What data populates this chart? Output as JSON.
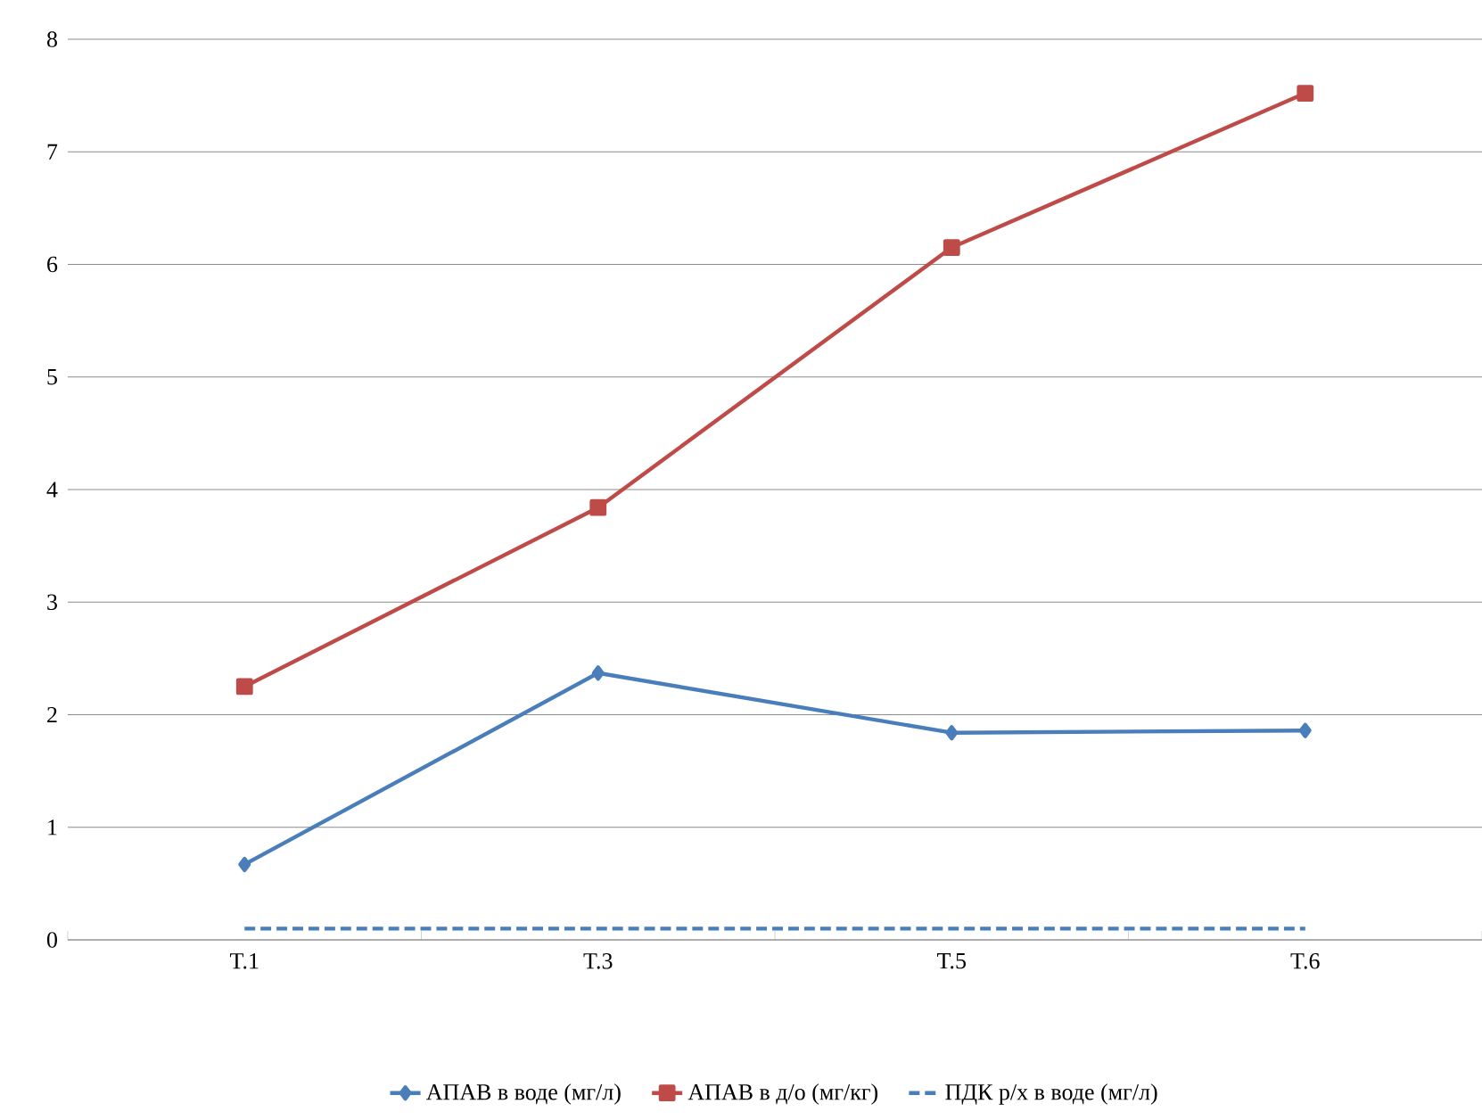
{
  "chart_data": {
    "type": "line",
    "categories": [
      "T.1",
      "T.3",
      "T.5",
      "T.6"
    ],
    "series": [
      {
        "name": "АПАВ в воде (мг/л)",
        "color": "#4a7ebb",
        "values": [
          0.67,
          2.37,
          1.84,
          1.86
        ],
        "marker": "diamond",
        "line_style": "solid"
      },
      {
        "name": "АПАВ в д/о (мг/кг)",
        "color": "#be4b48",
        "values": [
          2.25,
          3.84,
          6.15,
          7.52
        ],
        "marker": "square",
        "line_style": "solid"
      },
      {
        "name": "ПДК р/х в воде (мг/л)",
        "color": "#4a7ebb",
        "values": [
          0.1,
          0.1,
          0.1,
          0.1
        ],
        "marker": "none",
        "line_style": "dashed"
      }
    ],
    "ylim": [
      0,
      8
    ],
    "yticks": [
      0,
      1,
      2,
      3,
      4,
      5,
      6,
      7,
      8
    ],
    "grid": "y",
    "legend": "bottom"
  }
}
